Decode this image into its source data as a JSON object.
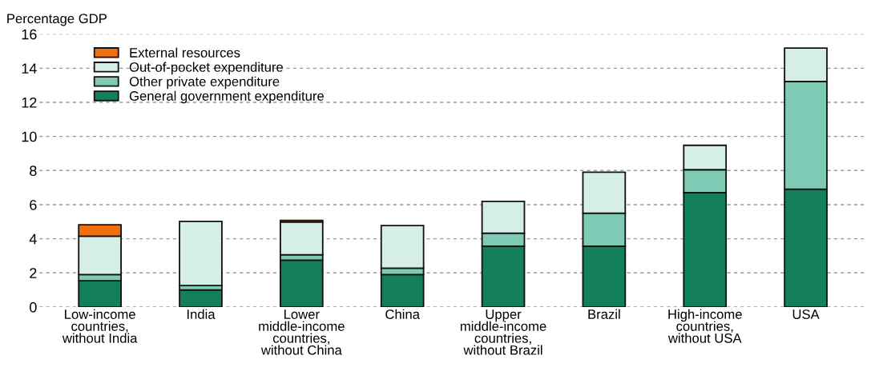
{
  "chart_data": {
    "type": "bar",
    "stacked": true,
    "ylabel": "Percentage GDP",
    "categories": [
      "Low-income\ncountries,\nwithout India",
      "India",
      "Lower\nmiddle-income\ncountries,\nwithout China",
      "China",
      "Upper\nmiddle-income\ncountries,\nwithout Brazil",
      "Brazil",
      "High-income\ncountries,\nwithout USA",
      "USA"
    ],
    "series": [
      {
        "name": "General government expenditure",
        "color": "#138059",
        "values": [
          1.54,
          1.0,
          2.75,
          1.9,
          3.57,
          3.57,
          6.71,
          6.91
        ]
      },
      {
        "name": "Other private expenditure",
        "color": "#7ecab4",
        "values": [
          0.36,
          0.26,
          0.31,
          0.38,
          0.76,
          1.93,
          1.34,
          6.31
        ]
      },
      {
        "name": "Out-of-pocket expenditure",
        "color": "#d6efe6",
        "values": [
          2.25,
          3.76,
          1.92,
          2.49,
          1.86,
          2.4,
          1.43,
          1.96
        ]
      },
      {
        "name": "External resources",
        "color": "#f26f10",
        "values": [
          0.67,
          null,
          0.1,
          null,
          null,
          null,
          null,
          null
        ]
      }
    ],
    "ylim": [
      0,
      16
    ],
    "yticks": [
      0,
      2,
      4,
      6,
      8,
      10,
      12,
      14,
      16
    ],
    "grid": "y",
    "legend": "top left"
  }
}
